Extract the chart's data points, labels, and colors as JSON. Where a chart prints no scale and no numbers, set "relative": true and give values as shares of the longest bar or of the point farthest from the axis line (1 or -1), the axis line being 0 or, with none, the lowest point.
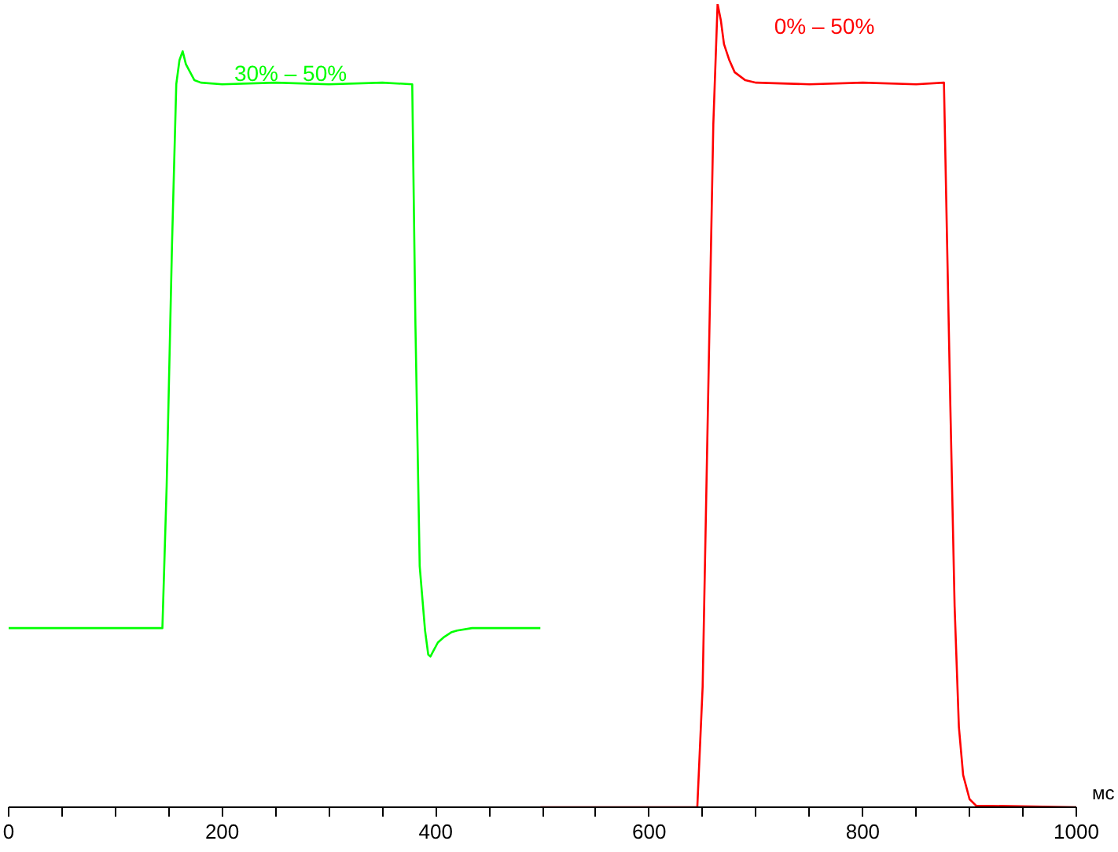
{
  "chart_data": {
    "type": "line",
    "relative": true,
    "xlabel": "мс",
    "xlim": [
      0,
      1000
    ],
    "xticks": [
      0,
      {
        "value": 50,
        "label": null
      },
      200,
      {
        "value": 100,
        "label": null
      },
      {
        "value": 150,
        "label": null
      },
      {
        "value": 250,
        "label": null
      },
      {
        "value": 300,
        "label": null
      },
      {
        "value": 350,
        "label": null
      },
      400,
      {
        "value": 450,
        "label": null
      },
      {
        "value": 500,
        "label": null
      },
      {
        "value": 550,
        "label": null
      },
      600,
      {
        "value": 650,
        "label": null
      },
      {
        "value": 700,
        "label": null
      },
      {
        "value": 750,
        "label": null
      },
      800,
      {
        "value": 850,
        "label": null
      },
      {
        "value": 900,
        "label": null
      },
      {
        "value": 950,
        "label": null
      },
      1000
    ],
    "grid": false,
    "marker": "none",
    "line_style": "solid",
    "series": [
      {
        "name": "30% – 50%",
        "color": "#00ff00",
        "x": [
          0,
          144,
          148,
          153,
          157,
          160,
          163,
          166,
          170,
          174,
          180,
          200,
          250,
          300,
          350,
          378,
          381,
          385,
          390,
          393,
          395,
          398,
          402,
          408,
          415,
          420,
          434,
          498
        ],
        "values": [
          0.223,
          0.223,
          0.4,
          0.7,
          0.9,
          0.93,
          0.941,
          0.925,
          0.915,
          0.905,
          0.902,
          0.9,
          0.902,
          0.9,
          0.902,
          0.9,
          0.6,
          0.3,
          0.22,
          0.19,
          0.1875,
          0.195,
          0.205,
          0.212,
          0.218,
          0.22,
          0.223,
          0.223
        ]
      },
      {
        "name": "0% – 50%",
        "color": "#ff0000",
        "x": [
          498,
          645,
          650,
          655,
          660,
          664,
          667,
          670,
          675,
          680,
          690,
          700,
          750,
          800,
          850,
          876,
          879,
          882,
          886,
          890,
          894,
          900,
          906,
          1000
        ],
        "values": [
          0,
          0,
          0.15,
          0.5,
          0.85,
          1.0,
          0.98,
          0.95,
          0.93,
          0.915,
          0.905,
          0.902,
          0.9,
          0.902,
          0.9,
          0.902,
          0.7,
          0.5,
          0.25,
          0.1,
          0.04,
          0.01,
          0.002,
          0
        ]
      }
    ]
  }
}
